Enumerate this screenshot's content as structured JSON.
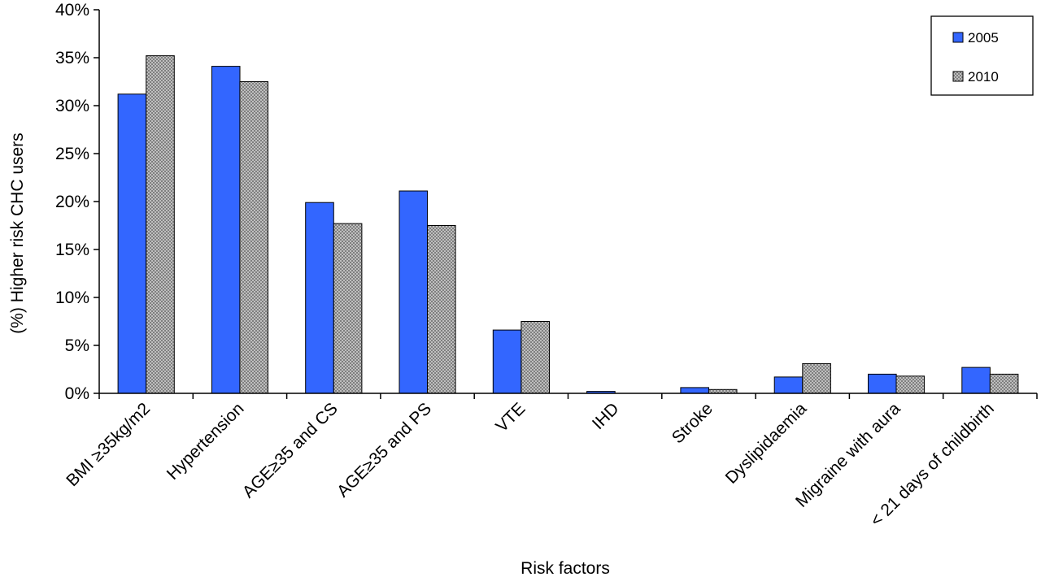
{
  "chart_data": {
    "type": "bar",
    "title": "",
    "xlabel": "Risk factors",
    "ylabel": "(%) Higher risk CHC users",
    "ylim": [
      0,
      40
    ],
    "yticks": [
      "0%",
      "5%",
      "10%",
      "15%",
      "20%",
      "25%",
      "30%",
      "35%",
      "40%"
    ],
    "grid": false,
    "legend_position": "top-right",
    "categories": [
      "BMI ≥35kg/m2",
      "Hypertension",
      "AGE≥35 and CS",
      "AGE≥35 and PS",
      "VTE",
      "IHD",
      "Stroke",
      "Dyslipidaemia",
      "Migraine with aura",
      "< 21 days of childbirth"
    ],
    "series": [
      {
        "name": "2005",
        "color": "#3366ff",
        "pattern": "solid",
        "values": [
          31.2,
          34.1,
          19.9,
          21.1,
          6.6,
          0.2,
          0.6,
          1.7,
          2.0,
          2.7
        ]
      },
      {
        "name": "2010",
        "color": "#a6a6a6",
        "pattern": "dotted",
        "values": [
          35.2,
          32.5,
          17.7,
          17.5,
          7.5,
          0.0,
          0.4,
          3.1,
          1.8,
          2.0
        ]
      }
    ]
  }
}
